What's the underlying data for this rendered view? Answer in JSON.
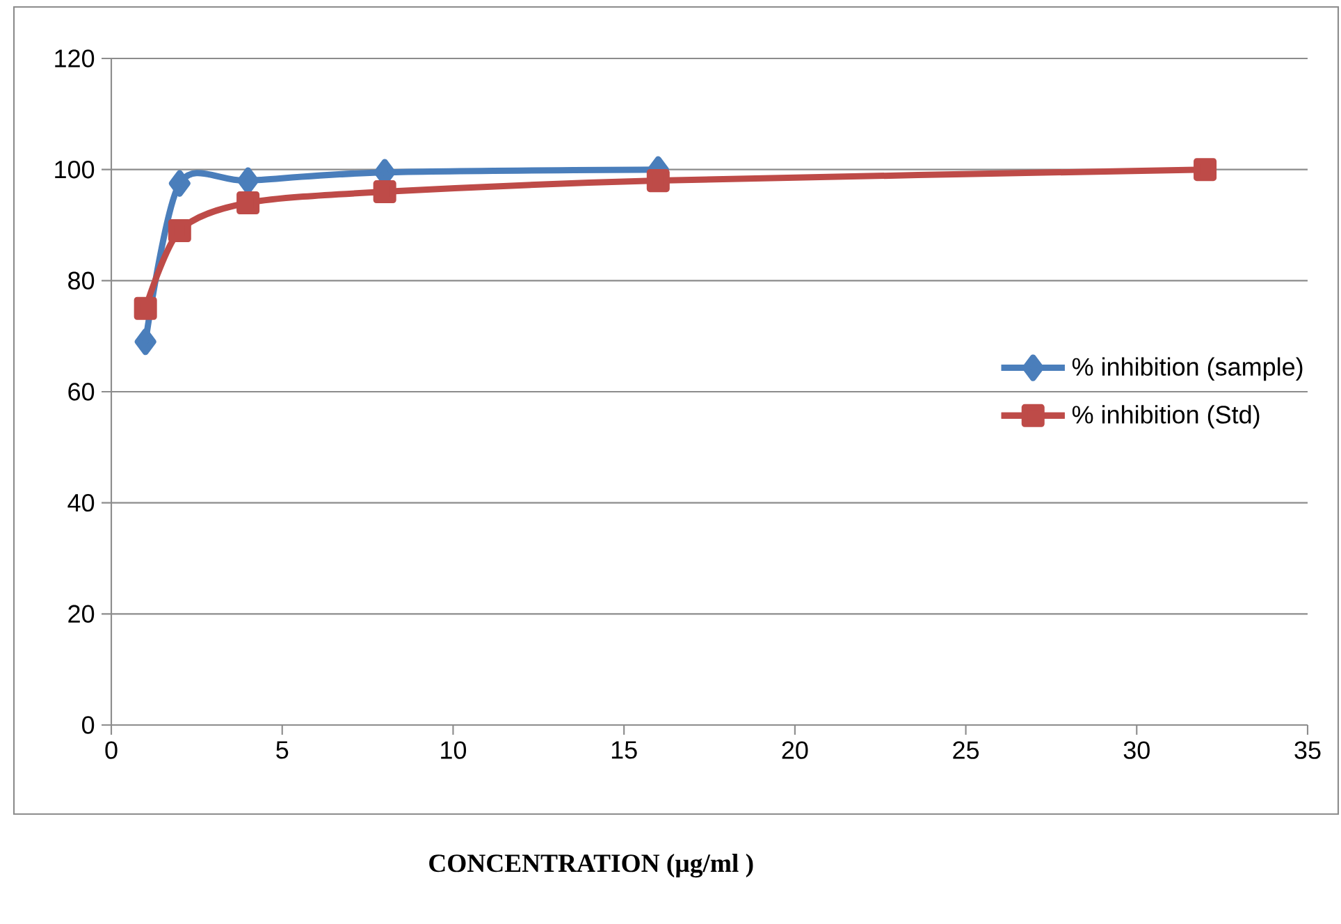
{
  "chart_data": {
    "type": "line",
    "xlabel": "CONCENTRATION (µg/ml )",
    "xlim": [
      0,
      35
    ],
    "xticks": [
      0,
      5,
      10,
      15,
      20,
      25,
      30,
      35
    ],
    "ylim": [
      0,
      120
    ],
    "yticks": [
      0,
      20,
      40,
      60,
      80,
      100,
      120
    ],
    "grid": "y",
    "legend": "right",
    "line_style": "solid",
    "series": [
      {
        "name": "% inhibition (sample)",
        "color": "#4a7ebb",
        "marker": "diamond",
        "x": [
          1,
          2,
          4,
          8,
          16
        ],
        "values": [
          69,
          97.5,
          98,
          99.5,
          100
        ]
      },
      {
        "name": "% inhibition (Std)",
        "color": "#be4b48",
        "marker": "square",
        "x": [
          1,
          2,
          4,
          8,
          16,
          32
        ],
        "values": [
          75,
          89,
          94,
          96,
          98,
          100
        ]
      }
    ]
  }
}
